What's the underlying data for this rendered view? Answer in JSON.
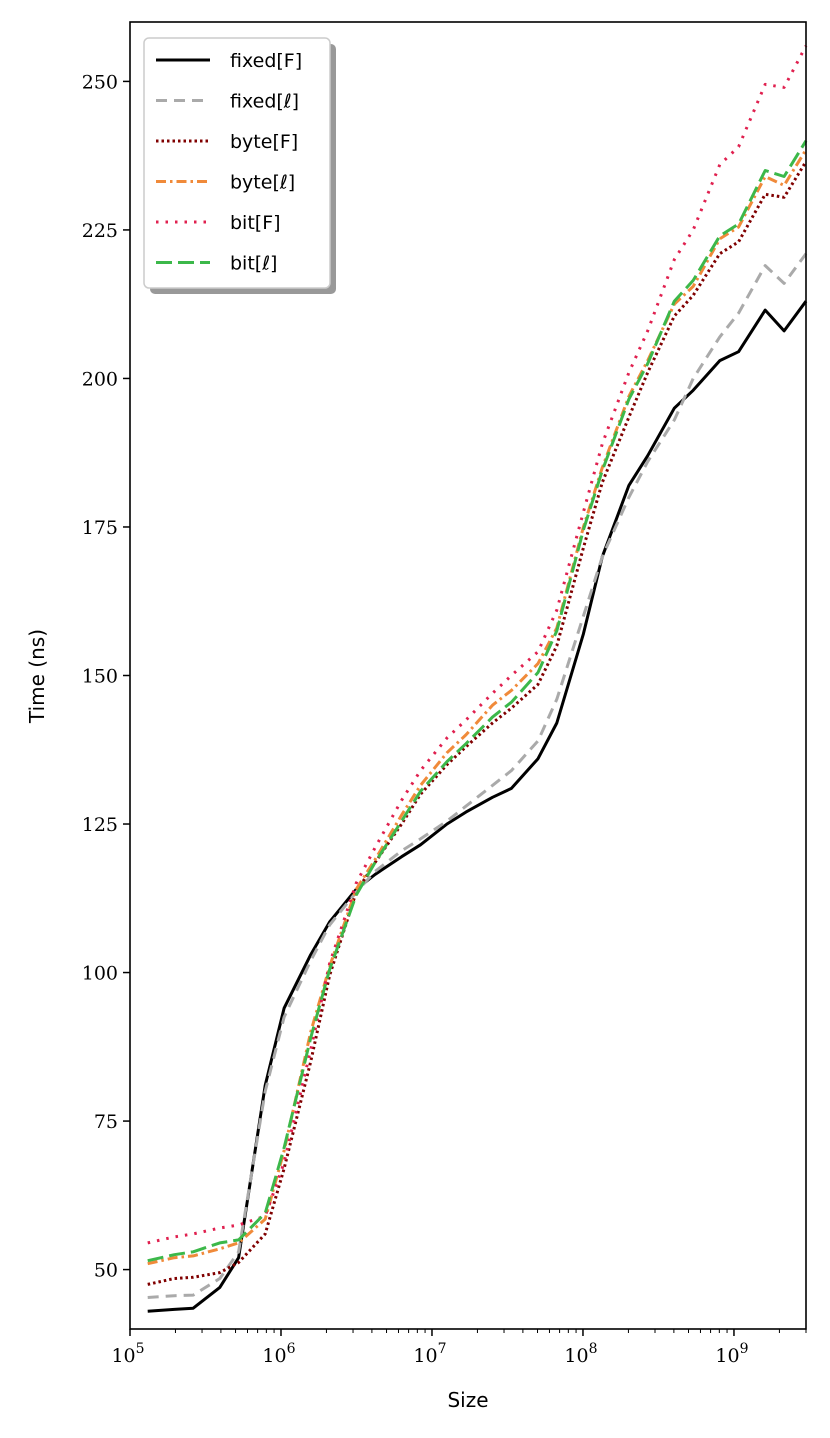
{
  "chart_data": {
    "type": "line",
    "xlabel": "Size",
    "ylabel": "Time (ns)",
    "xscale": "log",
    "xlim": [
      100000,
      3000000000
    ],
    "ylim": [
      40,
      260
    ],
    "grid": false,
    "legend_position": "top-left",
    "x_ticks": [
      {
        "value": 100000,
        "base": "10",
        "exp": "5"
      },
      {
        "value": 1000000,
        "base": "10",
        "exp": "6"
      },
      {
        "value": 10000000,
        "base": "10",
        "exp": "7"
      },
      {
        "value": 100000000,
        "base": "10",
        "exp": "8"
      },
      {
        "value": 1000000000,
        "base": "10",
        "exp": "9"
      }
    ],
    "y_ticks": [
      {
        "value": 50,
        "label": "50"
      },
      {
        "value": 75,
        "label": "75"
      },
      {
        "value": 100,
        "label": "100"
      },
      {
        "value": 125,
        "label": "125"
      },
      {
        "value": 150,
        "label": "150"
      },
      {
        "value": 175,
        "label": "175"
      },
      {
        "value": 200,
        "label": "200"
      },
      {
        "value": 225,
        "label": "225"
      },
      {
        "value": 250,
        "label": "250"
      }
    ],
    "x": [
      131072,
      196608,
      262144,
      393216,
      524288,
      786432,
      1048576,
      1572864,
      2097152,
      3145728,
      4194304,
      6291456,
      8388608,
      12582912,
      16777216,
      25165824,
      33554432,
      50331648,
      67108864,
      100663296,
      134217728,
      201326592,
      268435456,
      402653184,
      536870912,
      805306368,
      1073741824,
      1610612736,
      2147483648,
      3000000000
    ],
    "series": [
      {
        "name": "fixed[F]",
        "color": "#000000",
        "dash": "solid",
        "values": [
          43,
          43.3,
          43.5,
          47,
          52,
          81,
          94,
          103,
          108.5,
          114,
          116.5,
          119.5,
          121.5,
          125,
          127,
          129.5,
          131,
          136,
          142,
          157,
          170,
          182,
          187,
          195,
          198,
          203,
          204.5,
          211.5,
          208,
          213
        ]
      },
      {
        "name": "fixed[ℓ]",
        "color": "#aaaaaa",
        "dash": "dashed",
        "values": [
          45.3,
          45.6,
          45.7,
          48.5,
          53,
          80,
          92.5,
          102,
          108,
          113.5,
          117,
          120.5,
          122.5,
          125.5,
          128,
          131.5,
          134,
          139,
          146,
          160,
          170,
          180,
          186,
          193,
          200,
          207,
          211,
          219,
          216,
          221
        ]
      },
      {
        "name": "byte[F]",
        "color": "#800000",
        "dash": "dotted",
        "values": [
          47.5,
          48.5,
          48.7,
          49.5,
          51.2,
          56,
          67,
          85,
          99.5,
          113.5,
          118.5,
          125,
          130,
          135,
          138,
          142,
          144.5,
          148.5,
          155,
          171.5,
          182.5,
          193.5,
          201,
          210.5,
          214,
          221,
          223,
          231,
          230.5,
          236.5
        ]
      },
      {
        "name": "byte[ℓ]",
        "color": "#f08a3a",
        "dash": "dashdot",
        "values": [
          51,
          52,
          52.3,
          53.5,
          54.5,
          58.5,
          70,
          90,
          101,
          114,
          119,
          126.5,
          131.5,
          137,
          140,
          145,
          147.5,
          152,
          158,
          175,
          185,
          197,
          203,
          212.5,
          215.5,
          223.5,
          225.5,
          234,
          232.5,
          238.5
        ]
      },
      {
        "name": "bit[F]",
        "color": "#e0204f",
        "dash": "dots-sparse",
        "values": [
          54.5,
          55.5,
          56,
          57,
          57.5,
          59,
          68,
          87,
          101.5,
          115,
          121,
          129,
          134,
          139.5,
          142.5,
          147,
          150,
          154,
          161,
          177.5,
          189,
          201,
          208,
          220,
          225,
          236,
          239,
          249.5,
          249,
          256
        ]
      },
      {
        "name": "bit[ℓ]",
        "color": "#3cb84a",
        "dash": "longdash",
        "values": [
          51.5,
          52.5,
          53,
          54.5,
          55,
          59.5,
          70.5,
          89,
          100.5,
          113,
          118.5,
          125.5,
          130.5,
          135.5,
          138.5,
          143,
          145.5,
          150.5,
          157.5,
          174.5,
          184.5,
          196.5,
          202.5,
          213,
          216.5,
          224,
          226,
          235,
          234,
          240
        ]
      }
    ]
  }
}
